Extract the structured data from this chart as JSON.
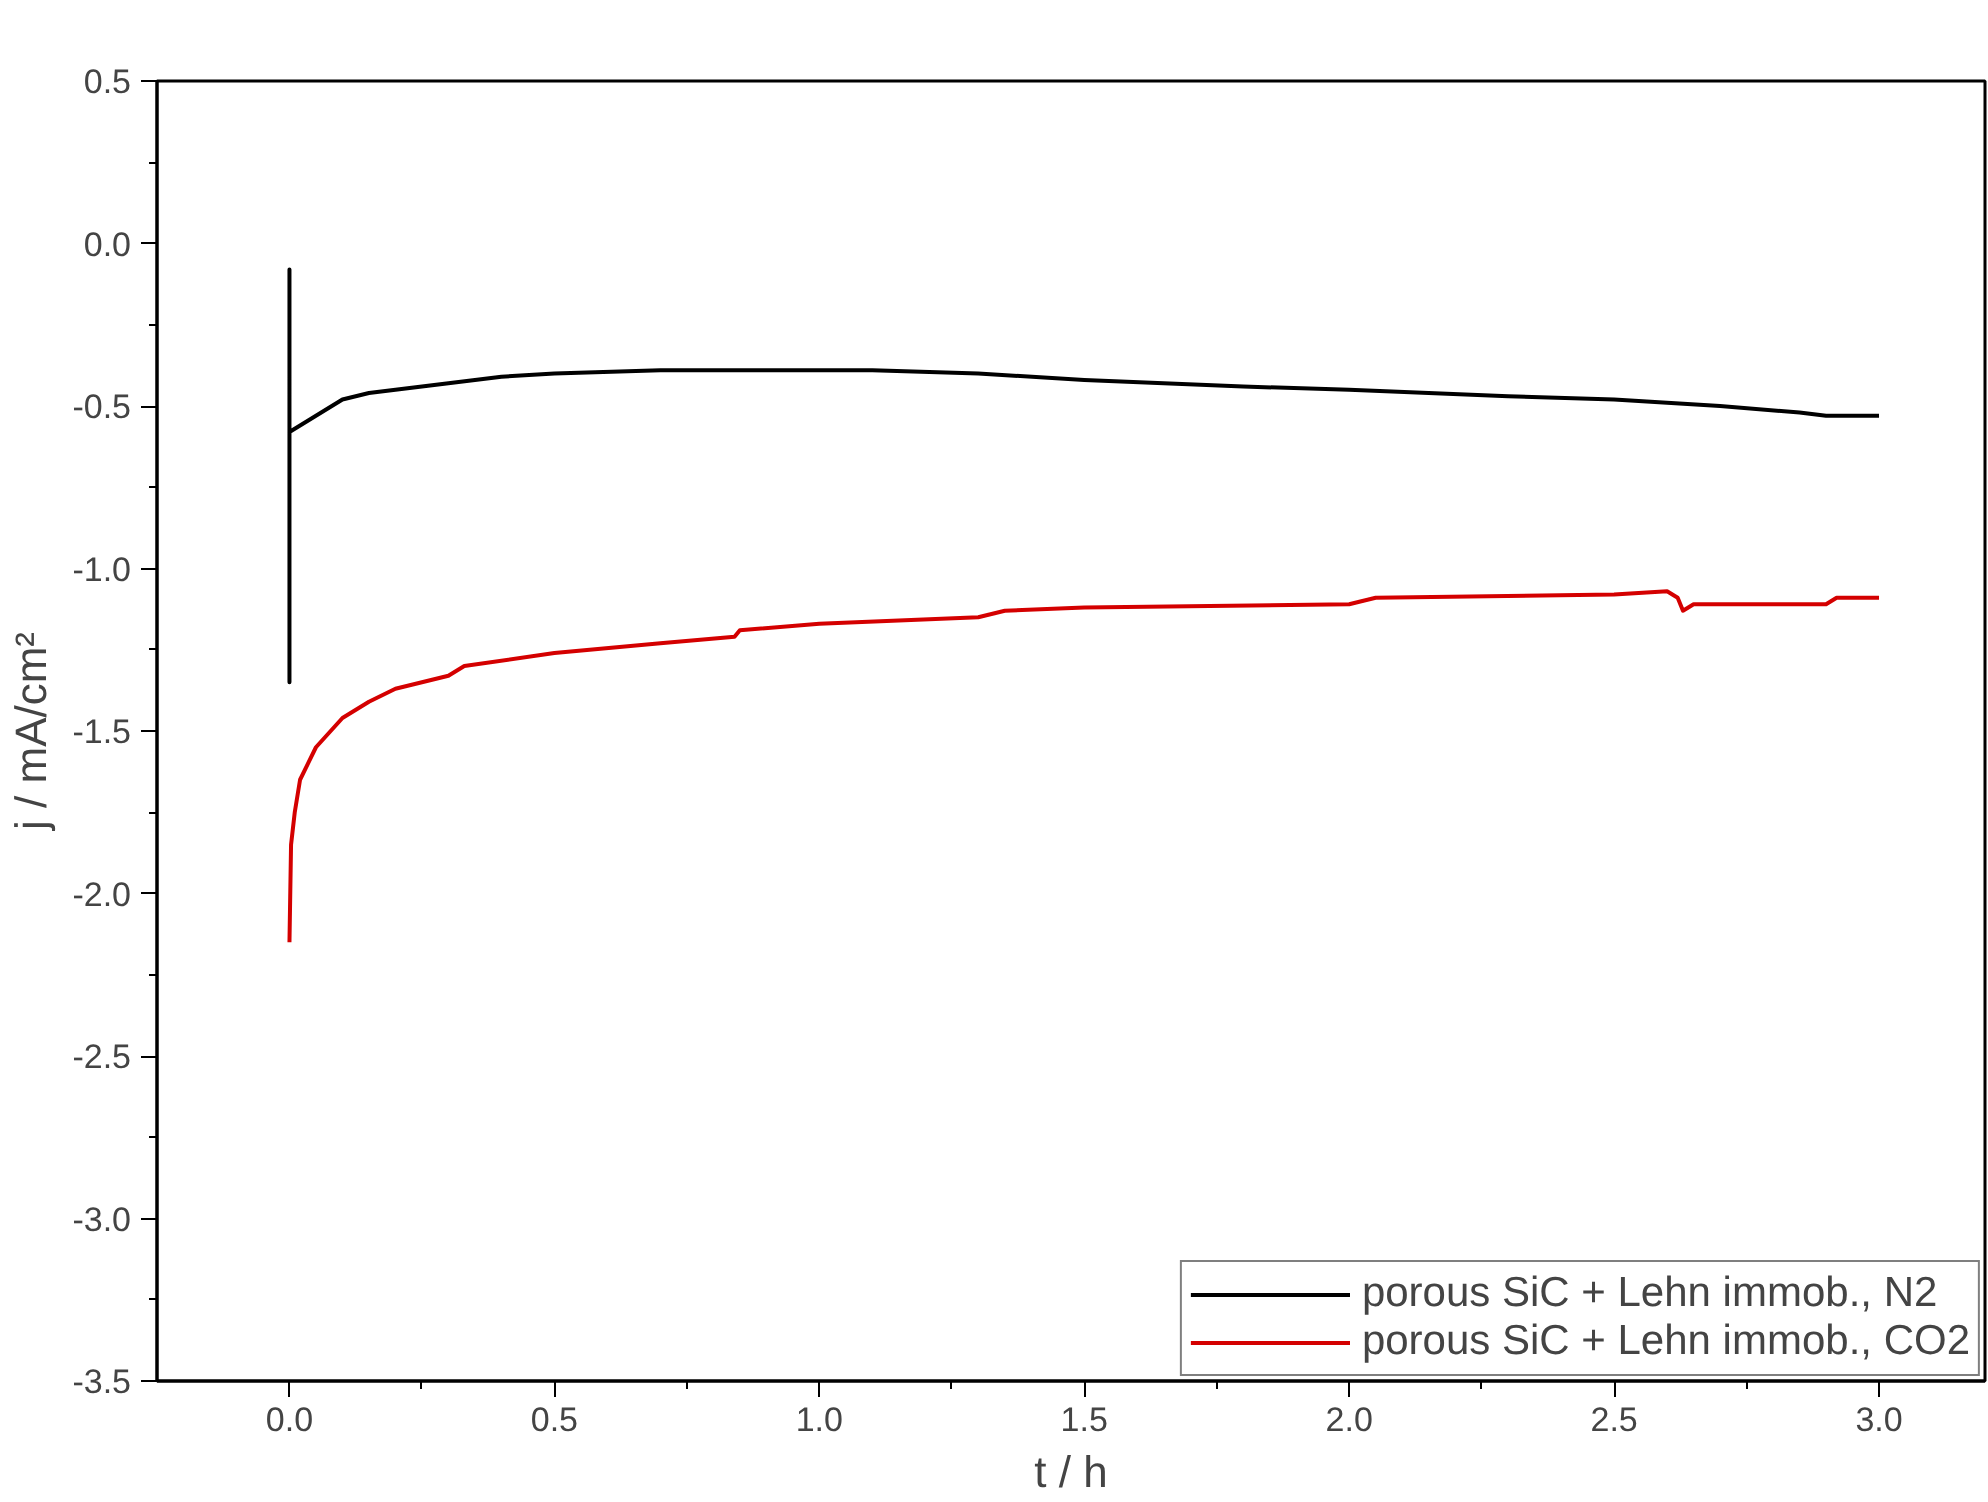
{
  "chart_data": {
    "type": "line",
    "xlabel": "t / h",
    "ylabel": "j / mA/cm²",
    "xlim": [
      -0.25,
      3.2
    ],
    "ylim": [
      -3.5,
      0.5
    ],
    "xticks": [
      {
        "value": 0,
        "label": "0.0"
      },
      0.5,
      {
        "value": 1,
        "label": "1.0"
      },
      1.5,
      {
        "value": 2,
        "label": "2.0"
      },
      2.5,
      {
        "value": 3,
        "label": "3.0"
      }
    ],
    "yticks": [
      -3.5,
      {
        "value": -3,
        "label": "-3.0"
      },
      -2.5,
      {
        "value": -2,
        "label": "-2.0"
      },
      -1.5,
      {
        "value": -1,
        "label": "-1.0"
      },
      -0.5,
      {
        "value": 0,
        "label": "0.0"
      },
      0.5
    ],
    "grid": false,
    "legend": "bottom right",
    "line_style": "solid",
    "series": [
      {
        "name": "porous SiC + Lehn immob., N2",
        "color": "#000000",
        "x": [
          0,
          0,
          0,
          0,
          0.05,
          0.1,
          0.15,
          0.2,
          0.3,
          0.4,
          0.5,
          0.7,
          0.9,
          1.1,
          1.3,
          1.5,
          1.8,
          2.0,
          2.3,
          2.5,
          2.7,
          2.85,
          2.9,
          3.0
        ],
        "values": [
          -0.58,
          -0.08,
          -1.35,
          -0.58,
          -0.53,
          -0.48,
          -0.46,
          -0.45,
          -0.43,
          -0.41,
          -0.4,
          -0.39,
          -0.39,
          -0.39,
          -0.4,
          -0.42,
          -0.44,
          -0.45,
          -0.47,
          -0.48,
          -0.5,
          -0.52,
          -0.53,
          -0.53
        ]
      },
      {
        "name": "porous SiC + Lehn immob., CO2",
        "color": "#d40000",
        "x": [
          0,
          0.003,
          0.01,
          0.02,
          0.05,
          0.1,
          0.15,
          0.2,
          0.3,
          0.33,
          0.5,
          0.7,
          0.84,
          0.85,
          1.0,
          1.3,
          1.35,
          1.5,
          2.0,
          2.05,
          2.5,
          2.6,
          2.62,
          2.63,
          2.65,
          2.9,
          2.92,
          3.0
        ],
        "values": [
          -2.15,
          -1.85,
          -1.75,
          -1.65,
          -1.55,
          -1.46,
          -1.41,
          -1.37,
          -1.33,
          -1.3,
          -1.26,
          -1.23,
          -1.21,
          -1.19,
          -1.17,
          -1.15,
          -1.13,
          -1.12,
          -1.11,
          -1.09,
          -1.08,
          -1.07,
          -1.09,
          -1.13,
          -1.11,
          -1.11,
          -1.09,
          -1.09
        ]
      }
    ]
  }
}
